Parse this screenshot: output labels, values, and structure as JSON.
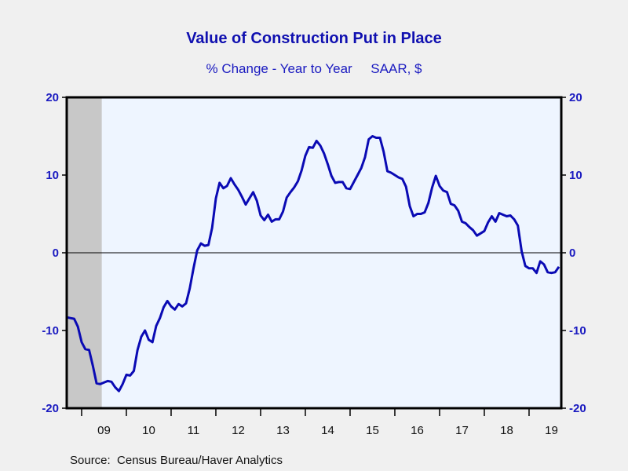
{
  "chart_data": {
    "type": "line",
    "title": "Value of Construction Put in Place",
    "subtitle": "% Change - Year to Year     SAAR, $",
    "source": "Source:  Census Bureau/Haver Analytics",
    "xlabel": "",
    "ylabel": "",
    "ylim": [
      -20,
      20
    ],
    "yticks": [
      20,
      10,
      0,
      -10,
      -20
    ],
    "ytick_labels_left": [
      "20",
      "10",
      "0",
      "-10",
      "-20"
    ],
    "ytick_labels_right": [
      "20",
      "10",
      "0",
      "-10",
      "-20"
    ],
    "x_start": "2008-09",
    "x_range_years": [
      2008.667,
      2019.72
    ],
    "xtick_years": [
      2009,
      2010,
      2011,
      2012,
      2013,
      2014,
      2015,
      2016,
      2017,
      2018,
      2019
    ],
    "xtick_labels": [
      "09",
      "10",
      "11",
      "12",
      "13",
      "14",
      "15",
      "16",
      "17",
      "18",
      "19"
    ],
    "recession_shading": {
      "start": 2008.667,
      "end": 2009.45,
      "color": "#c8c8c8"
    },
    "zero_line": true,
    "grid": false,
    "colors": {
      "line": "#0a0ab4",
      "plot_bg": "#eef5ff",
      "page_bg": "#f0f0f0",
      "title": "#1010b0"
    },
    "series": [
      {
        "name": "Value of Construction Put in Place (% Change YoY)",
        "frequency": "monthly",
        "values": [
          -8.3,
          -8.4,
          -8.5,
          -9.5,
          -11.5,
          -12.4,
          -12.5,
          -14.5,
          -16.8,
          -16.9,
          -16.7,
          -16.5,
          -16.6,
          -17.3,
          -17.8,
          -16.9,
          -15.7,
          -15.8,
          -15.2,
          -12.5,
          -10.8,
          -10.0,
          -11.2,
          -11.5,
          -9.4,
          -8.4,
          -7.0,
          -6.2,
          -6.9,
          -7.3,
          -6.6,
          -6.9,
          -6.5,
          -4.6,
          -2.0,
          0.3,
          1.2,
          0.9,
          1.0,
          3.2,
          7.0,
          9.0,
          8.3,
          8.6,
          9.6,
          8.8,
          8.1,
          7.2,
          6.2,
          7.0,
          7.8,
          6.7,
          4.8,
          4.2,
          4.9,
          4.0,
          4.3,
          4.3,
          5.3,
          7.1,
          7.8,
          8.4,
          9.2,
          10.6,
          12.5,
          13.6,
          13.5,
          14.4,
          13.8,
          12.8,
          11.4,
          9.9,
          9.0,
          9.1,
          9.1,
          8.3,
          8.2,
          9.1,
          10.0,
          10.9,
          12.3,
          14.6,
          15.0,
          14.8,
          14.8,
          13.0,
          10.5,
          10.3,
          10.0,
          9.7,
          9.5,
          8.5,
          6.0,
          4.7,
          5.0,
          5.0,
          5.2,
          6.4,
          8.4,
          9.9,
          8.6,
          8.0,
          7.8,
          6.3,
          6.1,
          5.4,
          4.0,
          3.8,
          3.3,
          2.9,
          2.2,
          2.5,
          2.8,
          3.9,
          4.7,
          4.0,
          5.1,
          4.9,
          4.7,
          4.8,
          4.3,
          3.5,
          0.2,
          -1.7,
          -2.0,
          -2.0,
          -2.6,
          -1.1,
          -1.5,
          -2.5,
          -2.6,
          -2.5,
          -1.8
        ]
      }
    ]
  }
}
